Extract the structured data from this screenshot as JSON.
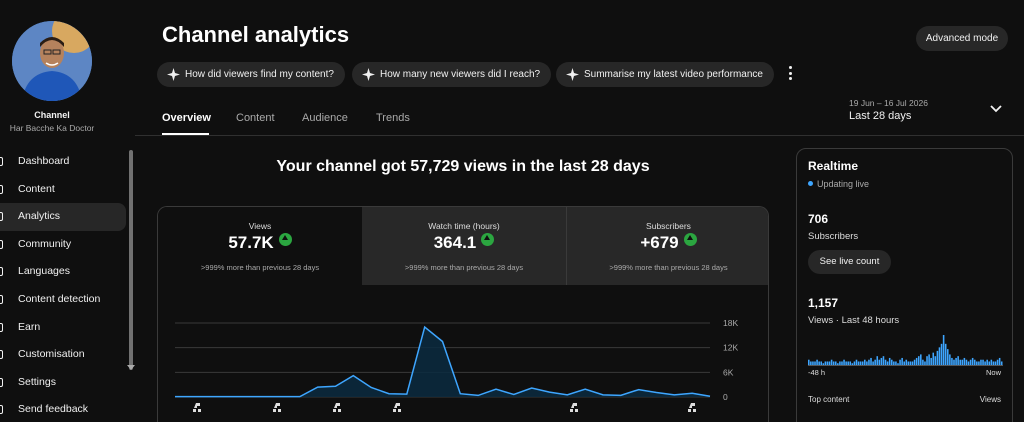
{
  "sidebar": {
    "channel_label": "Channel",
    "channel_name": "Har Bacche Ka Doctor",
    "items": [
      {
        "label": "Dashboard",
        "icon": "dashboard-icon"
      },
      {
        "label": "Content",
        "icon": "content-icon"
      },
      {
        "label": "Analytics",
        "icon": "analytics-icon",
        "active": true
      },
      {
        "label": "Community",
        "icon": "community-icon"
      },
      {
        "label": "Languages",
        "icon": "languages-icon"
      },
      {
        "label": "Content detection",
        "icon": "content-detection-icon"
      },
      {
        "label": "Earn",
        "icon": "earn-icon"
      },
      {
        "label": "Customisation",
        "icon": "customisation-icon"
      },
      {
        "label": "Settings",
        "icon": "settings-icon"
      },
      {
        "label": "Send feedback",
        "icon": "feedback-icon"
      }
    ]
  },
  "header": {
    "title": "Channel analytics",
    "advanced_mode": "Advanced mode",
    "suggestions": [
      "How did viewers find my content?",
      "How many new viewers did I reach?",
      "Summarise my latest video performance"
    ]
  },
  "tabs": [
    "Overview",
    "Content",
    "Audience",
    "Trends"
  ],
  "date": {
    "range": "19 Jun – 16 Jul 2026",
    "period": "Last 28 days"
  },
  "main": {
    "headline": "Your channel got 57,729 views in the last 28 days",
    "kpis": [
      {
        "label": "Views",
        "value": "57.7K",
        "note": ">999% more than previous 28 days"
      },
      {
        "label": "Watch time (hours)",
        "value": "364.1",
        "note": ">999% more than previous 28 days"
      },
      {
        "label": "Subscribers",
        "value": "+679",
        "note": ">999% more than previous 28 days"
      }
    ]
  },
  "chart_data": {
    "type": "area",
    "y_tick_labels": [
      "18K",
      "12K",
      "6K",
      "0"
    ],
    "ylim": [
      0,
      18000
    ],
    "values": [
      100,
      100,
      100,
      100,
      100,
      100,
      100,
      100,
      2400,
      2600,
      5200,
      2300,
      800,
      700,
      17000,
      13500,
      800,
      400,
      1900,
      600,
      2200,
      1200,
      500,
      1900,
      500,
      400,
      1800,
      1100,
      500,
      900,
      200
    ],
    "line_color": "#3ea6ff",
    "grid": true
  },
  "realtime": {
    "title": "Realtime",
    "status": "Updating live",
    "subscribers": "706",
    "subscribers_label": "Subscribers",
    "live_count_button": "See live count",
    "views": "1,157",
    "views_label": "Views · Last 48 hours",
    "bars": [
      3,
      2,
      2,
      2,
      3,
      2,
      2,
      1,
      2,
      2,
      2,
      3,
      2,
      2,
      1,
      2,
      2,
      3,
      2,
      2,
      2,
      1,
      2,
      3,
      2,
      2,
      2,
      3,
      2,
      3,
      4,
      2,
      3,
      5,
      3,
      4,
      5,
      3,
      2,
      4,
      3,
      2,
      2,
      1,
      3,
      4,
      2,
      3,
      2,
      2,
      2,
      3,
      4,
      5,
      6,
      3,
      2,
      5,
      6,
      4,
      7,
      5,
      8,
      10,
      12,
      17,
      12,
      9,
      6,
      4,
      3,
      4,
      5,
      3,
      3,
      4,
      3,
      2,
      3,
      4,
      3,
      2,
      2,
      3,
      3,
      2,
      3,
      2,
      3,
      2,
      2,
      3,
      4,
      2
    ],
    "axis_start": "-48 h",
    "axis_end": "Now",
    "top_content": "Top content",
    "top_views": "Views"
  },
  "colors": {
    "accent": "#3ea6ff",
    "up_green": "#2ba640"
  }
}
